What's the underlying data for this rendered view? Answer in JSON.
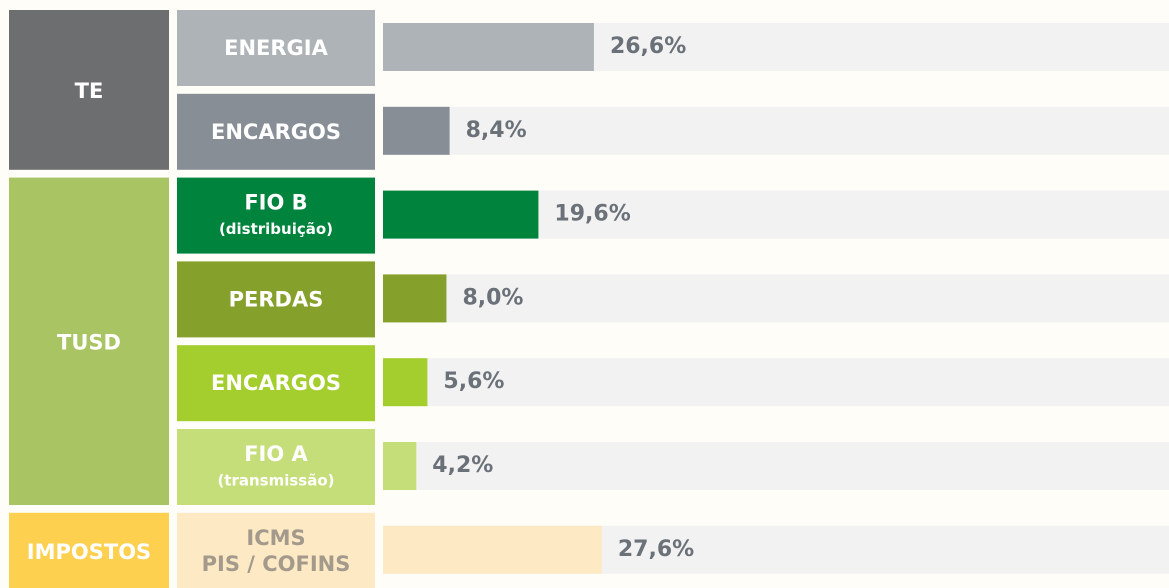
{
  "chart_data": {
    "type": "bar",
    "track_color": "#f2f2f2",
    "value_color": "#6b7178",
    "groups": [
      {
        "name": "TE",
        "color": "#6d6e70",
        "rows": [
          {
            "label": [
              "ENERGIA"
            ],
            "value": 26.6,
            "value_label": "26,6%",
            "color": "#aeb3b8",
            "text_color": "#ffffff"
          },
          {
            "label": [
              "ENCARGOS"
            ],
            "value": 8.4,
            "value_label": "8,4%",
            "color": "#878e96",
            "text_color": "#ffffff"
          }
        ]
      },
      {
        "name": "TUSD",
        "color": "#a9c462",
        "rows": [
          {
            "label": [
              "FIO B",
              "(distribuição)"
            ],
            "value": 19.6,
            "value_label": "19,6%",
            "color": "#00843d",
            "text_color": "#ffffff"
          },
          {
            "label": [
              "PERDAS"
            ],
            "value": 8.0,
            "value_label": "8,0%",
            "color": "#86a12b",
            "text_color": "#ffffff"
          },
          {
            "label": [
              "ENCARGOS"
            ],
            "value": 5.6,
            "value_label": "5,6%",
            "color": "#a4cd2e",
            "text_color": "#ffffff"
          },
          {
            "label": [
              "FIO A",
              "(transmissão)"
            ],
            "value": 4.2,
            "value_label": "4,2%",
            "color": "#c5de7a",
            "text_color": "#ffffff"
          }
        ]
      },
      {
        "name": "IMPOSTOS",
        "color": "#fdd04f",
        "rows": [
          {
            "label": [
              "ICMS",
              "PIS / COFINS"
            ],
            "value": 27.6,
            "value_label": "27,6%",
            "color": "#fde9c4",
            "text_color": "#a39a8c"
          }
        ]
      }
    ]
  }
}
